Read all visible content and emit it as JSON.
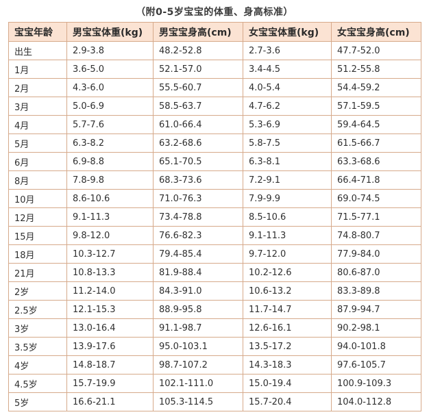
{
  "caption": "（附0-5岁宝宝的体重、身高标准）",
  "table": {
    "headers": [
      "宝宝年龄",
      "男宝宝体重(kg)",
      "男宝宝身高(cm)",
      "女宝宝体重(kg)",
      "女宝宝身高(cm)"
    ],
    "rows": [
      [
        "出生",
        "2.9-3.8",
        "48.2-52.8",
        "2.7-3.6",
        "47.7-52.0"
      ],
      [
        "1月",
        "3.6-5.0",
        "52.1-57.0",
        "3.4-4.5",
        "51.2-55.8"
      ],
      [
        "2月",
        "4.3-6.0",
        "55.5-60.7",
        "4.0-5.4",
        "54.4-59.2"
      ],
      [
        "3月",
        "5.0-6.9",
        "58.5-63.7",
        "4.7-6.2",
        "57.1-59.5"
      ],
      [
        "4月",
        "5.7-7.6",
        "61.0-66.4",
        "5.3-6.9",
        "59.4-64.5"
      ],
      [
        "5月",
        "6.3-8.2",
        "63.2-68.6",
        "5.8-7.5",
        "61.5-66.7"
      ],
      [
        "6月",
        "6.9-8.8",
        "65.1-70.5",
        "6.3-8.1",
        "63.3-68.6"
      ],
      [
        "8月",
        "7.8-9.8",
        "68.3-73.6",
        "7.2-9.1",
        "66.4-71.8"
      ],
      [
        "10月",
        "8.6-10.6",
        "71.0-76.3",
        "7.9-9.9",
        "69.0-74.5"
      ],
      [
        "12月",
        "9.1-11.3",
        "73.4-78.8",
        "8.5-10.6",
        "71.5-77.1"
      ],
      [
        "15月",
        "9.8-12.0",
        "76.6-82.3",
        "9.1-11.3",
        "74.8-80.7"
      ],
      [
        "18月",
        "10.3-12.7",
        "79.4-85.4",
        "9.7-12.0",
        "77.9-84.0"
      ],
      [
        "21月",
        "10.8-13.3",
        "81.9-88.4",
        "10.2-12.6",
        "80.6-87.0"
      ],
      [
        "2岁",
        "11.2-14.0",
        "84.3-91.0",
        "10.6-13.2",
        "83.3-89.8"
      ],
      [
        "2.5岁",
        "12.1-15.3",
        "88.9-95.8",
        "11.7-14.7",
        "87.9-94.7"
      ],
      [
        "3岁",
        "13.0-16.4",
        "91.1-98.7",
        "12.6-16.1",
        "90.2-98.1"
      ],
      [
        "3.5岁",
        "13.9-17.6",
        "95.0-103.1",
        "13.5-17.2",
        "94.0-101.8"
      ],
      [
        "4岁",
        "14.8-18.7",
        "98.7-107.2",
        "14.3-18.3",
        "97.6-105.7"
      ],
      [
        "4.5岁",
        "15.7-19.9",
        "102.1-111.0",
        "15.0-19.4",
        "100.9-109.3"
      ],
      [
        "5岁",
        "16.6-21.1",
        "105.3-114.5",
        "15.7-20.4",
        "104.0-112.8"
      ]
    ]
  },
  "colors": {
    "header_background": "#fbe3d3",
    "border": "#d6a98a"
  }
}
